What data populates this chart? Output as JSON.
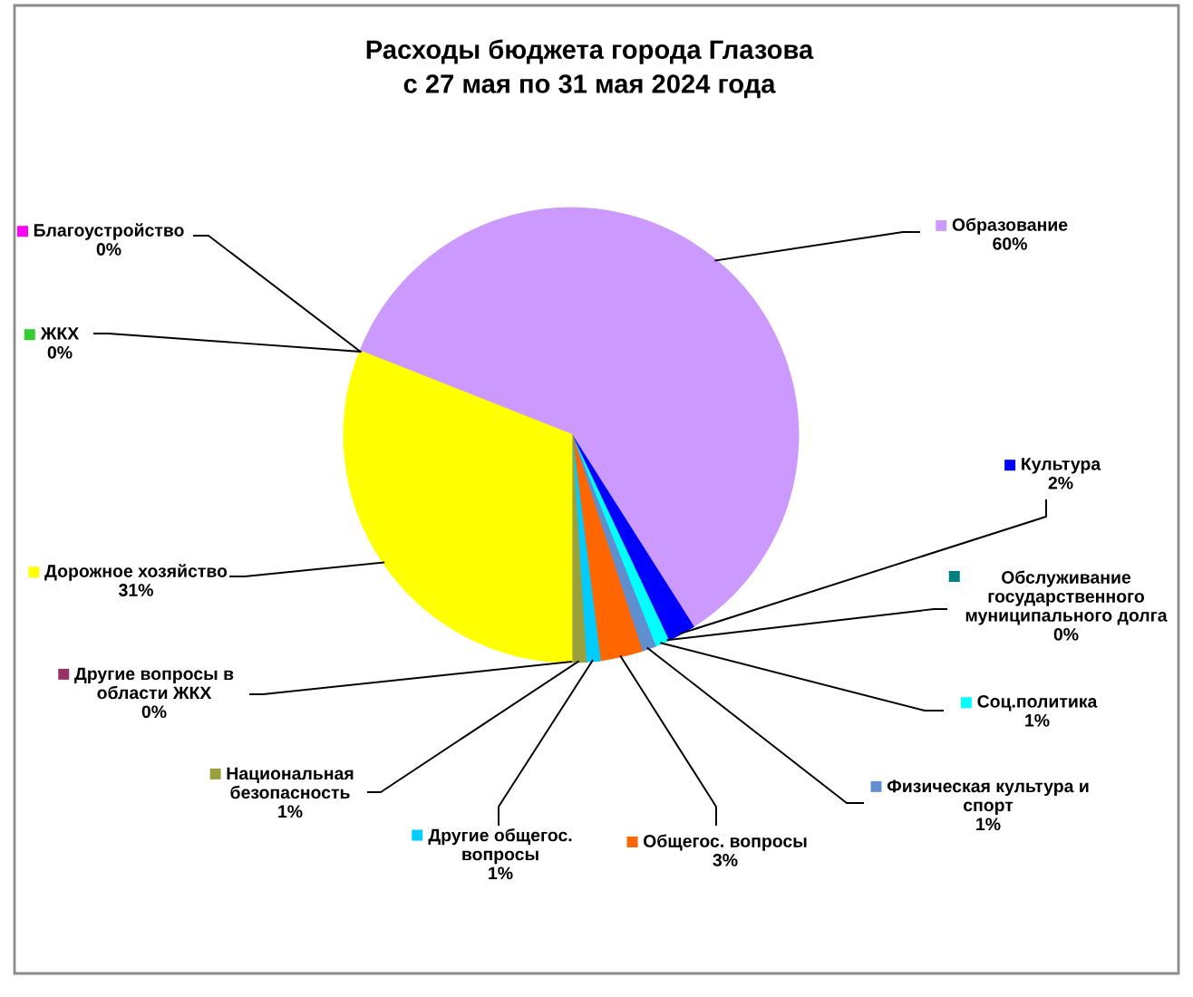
{
  "chart_data": {
    "type": "pie",
    "title": "Расходы бюджета города Глазова с 27 мая по 31 мая 2024 года",
    "categories": [
      "Образование",
      "Культура",
      "Обслуживание государственного муниципального долга",
      "Соц.политика",
      "Физическая культура и спорт",
      "Общегос. вопросы",
      "Другие общегос. вопросы",
      "Национальная безопасность",
      "Другие вопросы в области ЖКХ",
      "Дорожное хозяйство",
      "ЖКХ",
      "Благоустройство"
    ],
    "values": [
      60,
      2,
      0,
      1,
      1,
      3,
      1,
      1,
      0,
      31,
      0,
      0
    ],
    "value_labels": [
      "60%",
      "2%",
      "0%",
      "1%",
      "1%",
      "3%",
      "1%",
      "1%",
      "0%",
      "31%",
      "0%",
      "0%"
    ],
    "colors": [
      "#cc99ff",
      "#0000ff",
      "#008080",
      "#00ffff",
      "#5f8fcf",
      "#ff6600",
      "#00ccff",
      "#9aa03c",
      "#993366",
      "#ffff00",
      "#33cc33",
      "#ff00ff"
    ],
    "legend": "right"
  }
}
